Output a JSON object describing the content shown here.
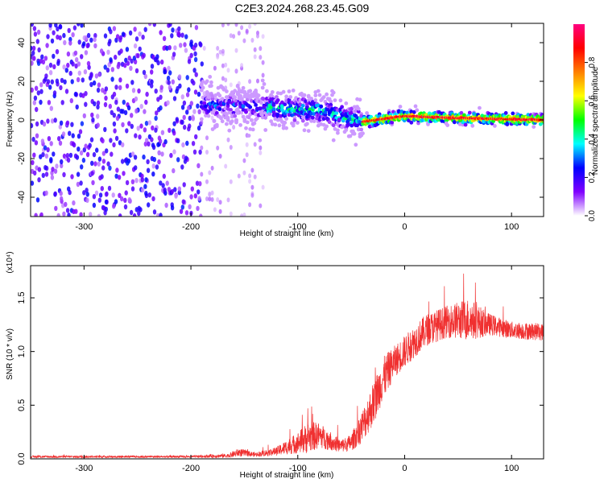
{
  "title": "C2E3.2024.268.23.45.G09",
  "chart_data": [
    {
      "type": "heatmap",
      "title": "C2E3.2024.268.23.45.G09",
      "xlabel": "Height of straight line (km)",
      "ylabel": "Frequency (Hz)",
      "xlim": [
        -350,
        130
      ],
      "ylim": [
        -50,
        50
      ],
      "xticks": [
        -300,
        -200,
        -100,
        0,
        100
      ],
      "xtick_labels": [
        "-300",
        "-200",
        "-100",
        "0",
        "100"
      ],
      "yticks": [
        -40,
        -20,
        0,
        20,
        40
      ],
      "ytick_labels": [
        "-40",
        "-20",
        "0",
        "20",
        "40"
      ],
      "colorbar": {
        "label": "Normalized spectral amplitude",
        "range": [
          0,
          1
        ],
        "ticks": [
          0.0,
          0.2,
          0.4,
          0.6,
          0.8
        ],
        "tick_labels": [
          "0.0",
          "0.2",
          "0.4",
          "0.6",
          "0.8"
        ],
        "colormap": [
          "#ffffff",
          "#8000ff",
          "#0000ff",
          "#00ffff",
          "#00ff00",
          "#ffff00",
          "#ff8000",
          "#ff0000",
          "#ff0080"
        ]
      },
      "regions": [
        {
          "x": [
            -350,
            -190
          ],
          "description_level": 0.15,
          "freq_spread": 50
        },
        {
          "x": [
            -190,
            -130
          ],
          "description_level": 0.3,
          "freq_spread": 12
        },
        {
          "x": [
            -130,
            -40
          ],
          "description_level": 0.45,
          "freq_spread": 7
        },
        {
          "x": [
            -40,
            130
          ],
          "description_level": 0.8,
          "freq_spread": 2
        }
      ],
      "ridge_center": [
        {
          "x": -190,
          "y": 8
        },
        {
          "x": -120,
          "y": 6
        },
        {
          "x": -80,
          "y": 5
        },
        {
          "x": -40,
          "y": -1
        },
        {
          "x": 0,
          "y": 2
        },
        {
          "x": 50,
          "y": 1
        },
        {
          "x": 130,
          "y": 0
        }
      ],
      "grid": false
    },
    {
      "type": "line",
      "xlabel": "Height of straight line (km)",
      "ylabel": "SNR (10 * v/v)",
      "y_multiplier_label": "(x10⁴)",
      "xlim": [
        -350,
        130
      ],
      "ylim": [
        0,
        1.8
      ],
      "xticks": [
        -300,
        -200,
        -100,
        0,
        100
      ],
      "xtick_labels": [
        "-300",
        "-200",
        "-100",
        "0",
        "100"
      ],
      "yticks": [
        0,
        0.5,
        1.0,
        1.5
      ],
      "ytick_labels": [
        "0.0",
        "0.5",
        "1.0",
        "1.5"
      ],
      "series": [
        {
          "color": "#f03030",
          "envelope": [
            {
              "x": -350,
              "mean": 0.02,
              "noise": 0.01
            },
            {
              "x": -200,
              "mean": 0.02,
              "noise": 0.01
            },
            {
              "x": -165,
              "mean": 0.03,
              "noise": 0.02
            },
            {
              "x": -155,
              "mean": 0.06,
              "noise": 0.04
            },
            {
              "x": -140,
              "mean": 0.04,
              "noise": 0.02
            },
            {
              "x": -120,
              "mean": 0.07,
              "noise": 0.04
            },
            {
              "x": -100,
              "mean": 0.15,
              "noise": 0.1
            },
            {
              "x": -90,
              "mean": 0.2,
              "noise": 0.15
            },
            {
              "x": -80,
              "mean": 0.22,
              "noise": 0.12
            },
            {
              "x": -60,
              "mean": 0.12,
              "noise": 0.06
            },
            {
              "x": -50,
              "mean": 0.15,
              "noise": 0.08
            },
            {
              "x": -40,
              "mean": 0.3,
              "noise": 0.15
            },
            {
              "x": -30,
              "mean": 0.5,
              "noise": 0.2
            },
            {
              "x": -20,
              "mean": 0.75,
              "noise": 0.2
            },
            {
              "x": -10,
              "mean": 0.9,
              "noise": 0.15
            },
            {
              "x": 0,
              "mean": 1.0,
              "noise": 0.15
            },
            {
              "x": 20,
              "mean": 1.2,
              "noise": 0.15
            },
            {
              "x": 40,
              "mean": 1.28,
              "noise": 0.15
            },
            {
              "x": 60,
              "mean": 1.3,
              "noise": 0.2
            },
            {
              "x": 80,
              "mean": 1.25,
              "noise": 0.1
            },
            {
              "x": 100,
              "mean": 1.2,
              "noise": 0.08
            },
            {
              "x": 130,
              "mean": 1.18,
              "noise": 0.08
            }
          ]
        }
      ],
      "grid": false
    }
  ]
}
